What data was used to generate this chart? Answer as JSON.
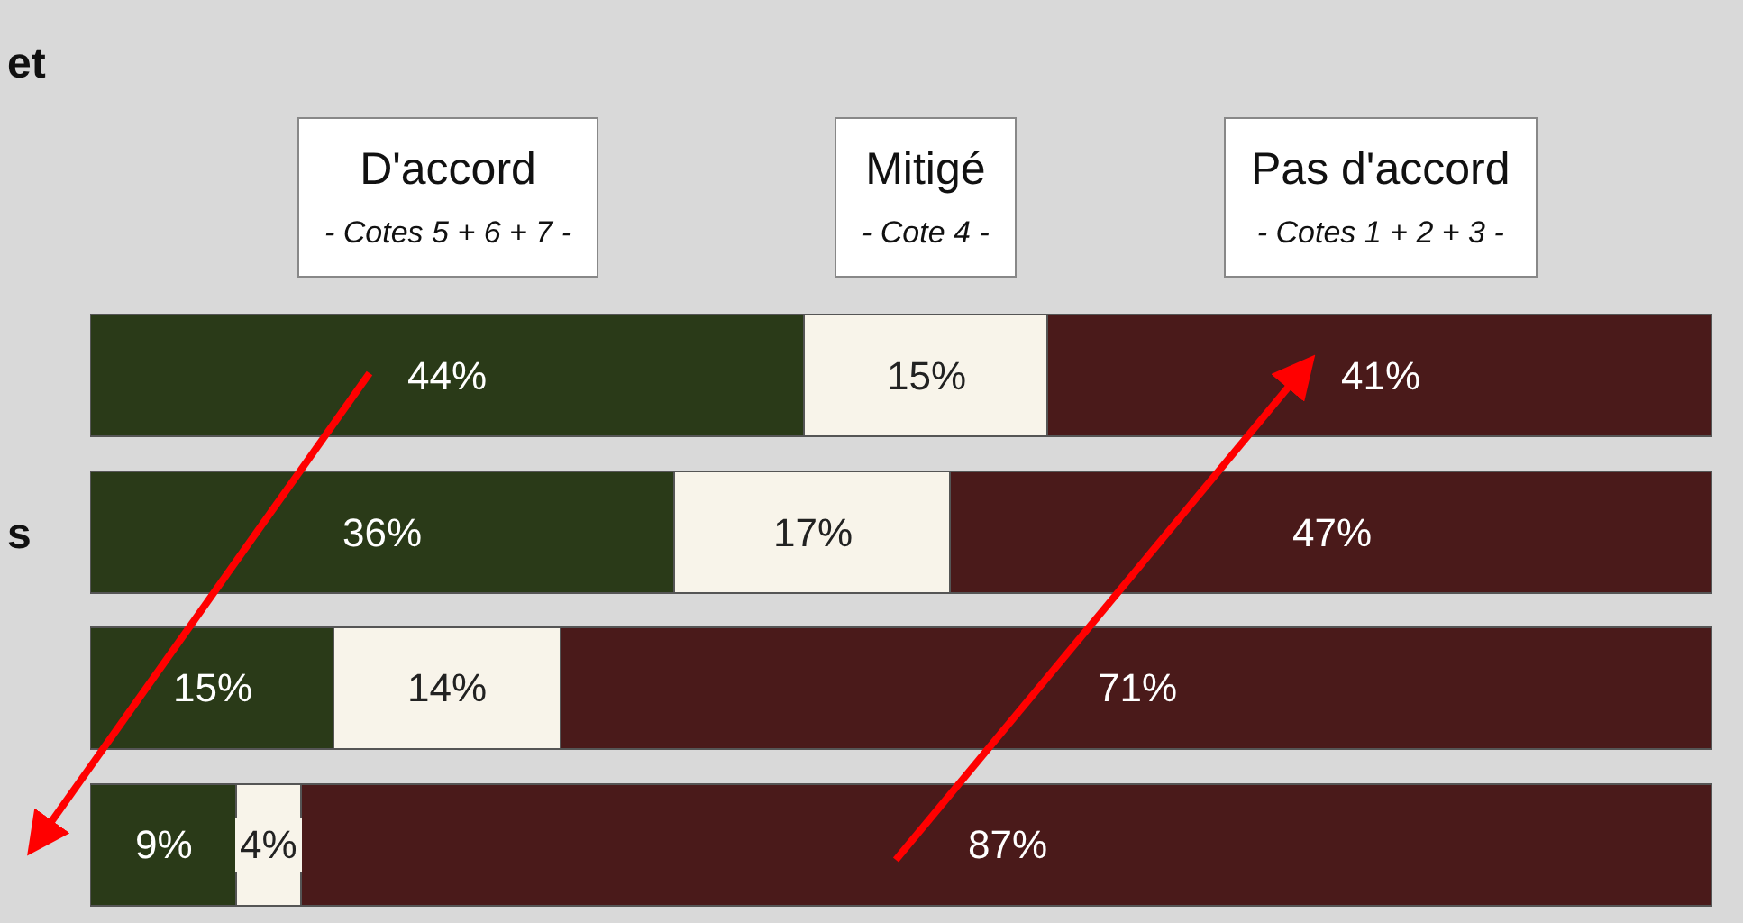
{
  "chart_data": {
    "type": "bar",
    "orientation": "horizontal",
    "stacked": true,
    "legend": "top",
    "categories": [
      null,
      null,
      null,
      null
    ],
    "series": [
      {
        "name": "D'accord\n- Cotes 5 + 6 + 7 -",
        "color": "#2a3a18",
        "values": [
          44,
          36,
          15,
          9
        ],
        "value_labels": [
          "44%",
          "36%",
          "15%",
          "9%"
        ]
      },
      {
        "name": "Mitigé\n- Cote 4 -",
        "color": "#f8f4ea",
        "values": [
          15,
          17,
          14,
          4
        ],
        "value_labels": [
          "15%",
          "17%",
          "14%",
          "4%"
        ]
      },
      {
        "name": "Pas d'accord\n- Cotes 1 + 2 + 3 -",
        "color": "#4a1a1a",
        "values": [
          41,
          47,
          71,
          87
        ],
        "value_labels": [
          "41%",
          "47%",
          "71%",
          "87%"
        ]
      }
    ],
    "annotations": [
      "et",
      "s"
    ]
  }
}
